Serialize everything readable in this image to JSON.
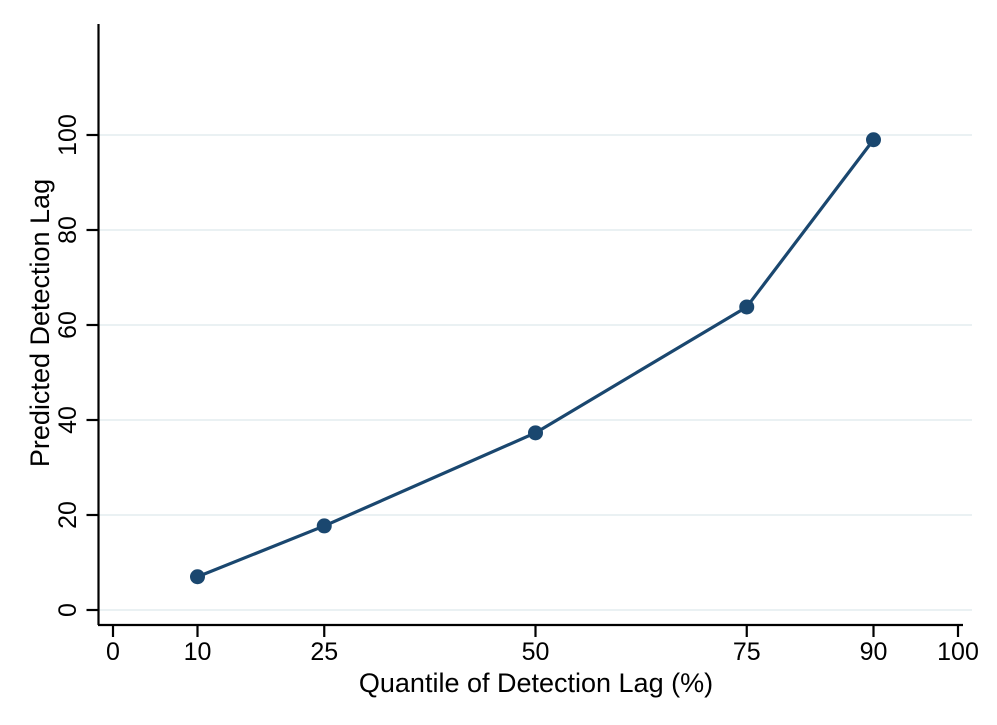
{
  "chart_data": {
    "type": "line",
    "title": "",
    "xlabel": "Quantile of Detection Lag (%)",
    "ylabel": "Predicted Detection Lag",
    "series": [
      {
        "name": "Predicted Detection Lag",
        "x": [
          10,
          25,
          50,
          75,
          90
        ],
        "y": [
          7,
          17.7,
          37.3,
          63.8,
          99
        ]
      }
    ],
    "xticks": [
      0,
      10,
      25,
      50,
      75,
      90,
      100
    ],
    "yticks": [
      0,
      20,
      40,
      60,
      80,
      100
    ],
    "xlim": [
      0,
      100
    ],
    "ylim": [
      0,
      100
    ],
    "grid": "horizontal-only",
    "legend": "none",
    "colors": {
      "line": "#1a476f",
      "marker": "#1a476f",
      "gridline": "#eaf1f3",
      "axis": "#000000",
      "background": "#ffffff"
    }
  }
}
